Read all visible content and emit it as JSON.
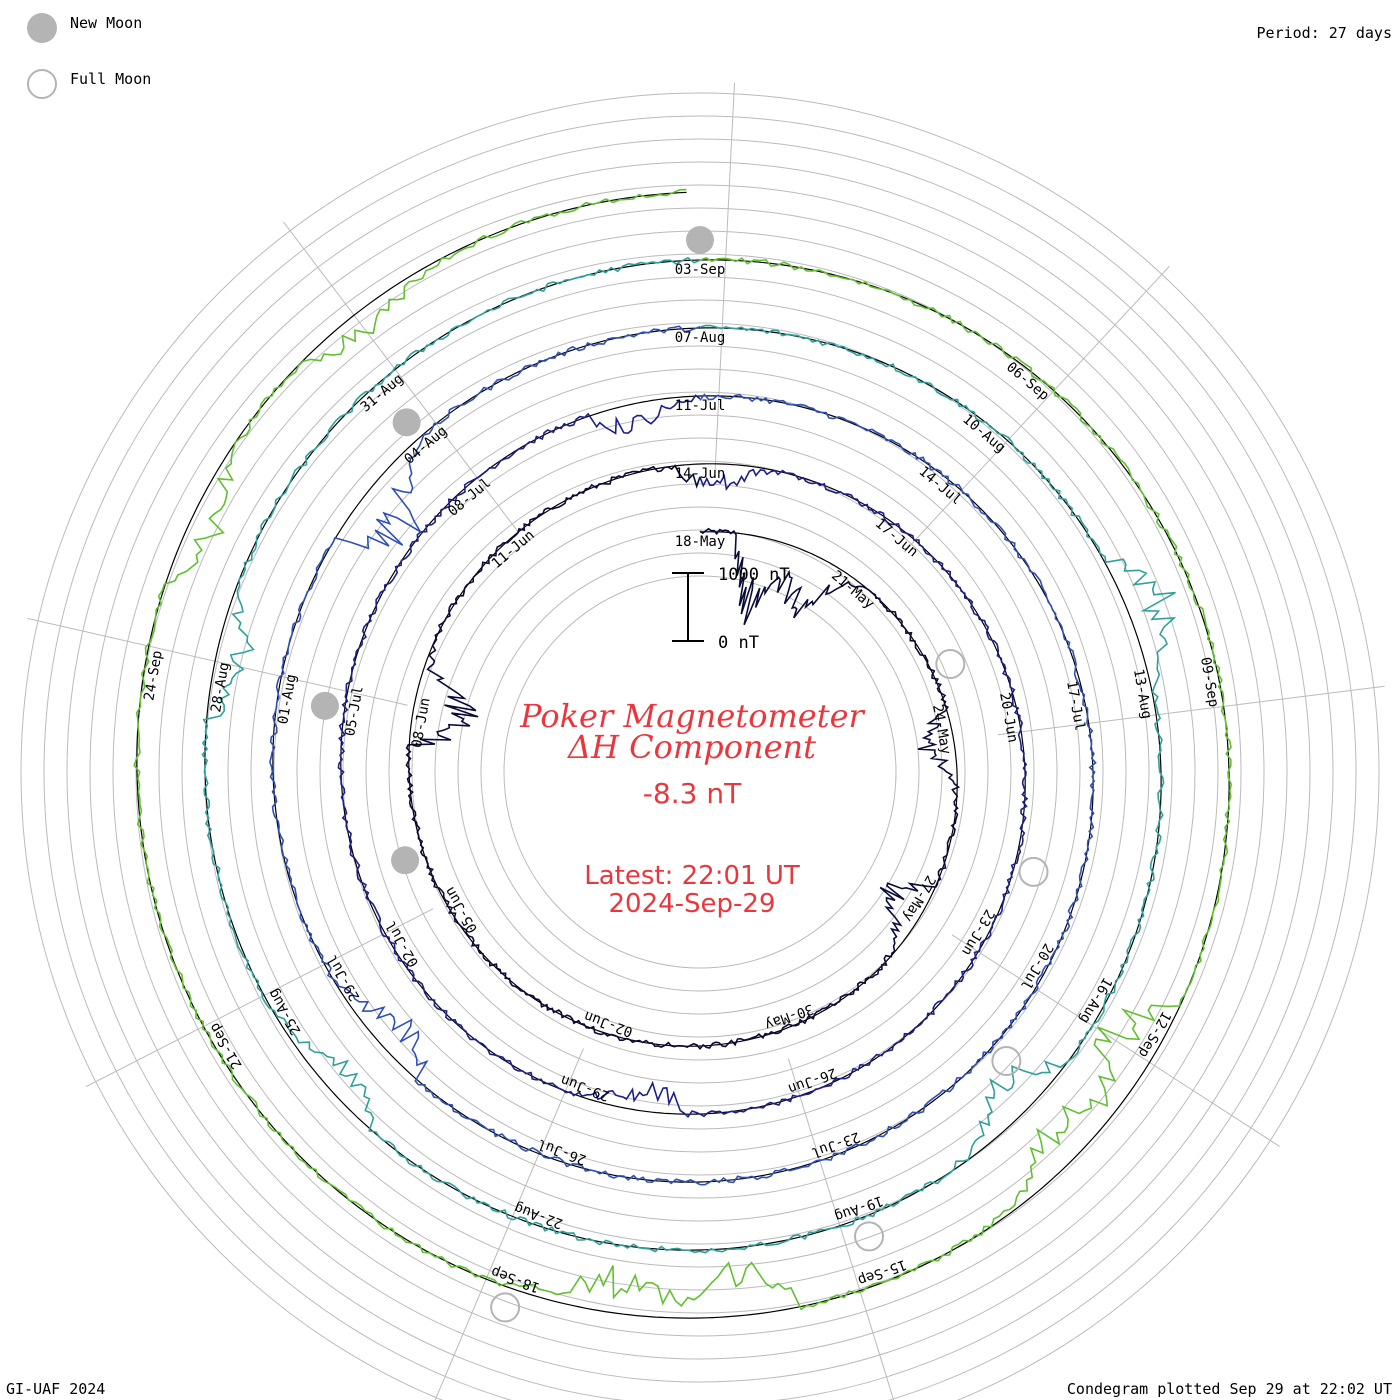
{
  "header": {
    "new_moon_label": "New Moon",
    "full_moon_label": "Full Moon",
    "period_label": "Period: 27 days"
  },
  "footer": {
    "credit": "GI-UAF 2024",
    "plotted": "Condegram plotted Sep 29 at 22:02 UT"
  },
  "center": {
    "title_line1": "Poker Magnetometer",
    "title_line2": "ΔH Component",
    "current_value": "-8.3 nT",
    "latest_time": "Latest: 22:01 UT",
    "latest_date": "2024-Sep-29",
    "scale_top_label": "1000 nT",
    "scale_bottom_label": "0 nT"
  },
  "colors": {
    "turns": [
      "#0b0b3a",
      "#1e1e8c",
      "#3050b8",
      "#30a09a",
      "#60c030",
      "#b0a010",
      "#c03010"
    ],
    "accent": "#e8383d",
    "moon_fill": "#b4b4b4",
    "grid": "#bbbbbb"
  },
  "chart_data": {
    "type": "condegram",
    "period_days": 27,
    "units": "nT",
    "scale_bar_nT": [
      0,
      1000
    ],
    "start_date": "2024-May-18",
    "end_date": "2024-Sep-29",
    "current_value_nT": -8.3,
    "date_labels": [
      {
        "turn": 0,
        "labels": [
          "18-May",
          "21-May",
          "24-May",
          "27-May",
          "30-May",
          "02-Jun",
          "05-Jun",
          "08-Jun",
          "11-Jun"
        ]
      },
      {
        "turn": 1,
        "labels": [
          "14-Jun",
          "17-Jun",
          "20-Jun",
          "23-Jun",
          "26-Jun",
          "29-Jun",
          "02-Jul",
          "05-Jul",
          "08-Jul"
        ]
      },
      {
        "turn": 2,
        "labels": [
          "11-Jul",
          "14-Jul",
          "17-Jul",
          "20-Jul",
          "23-Jul",
          "26-Jul",
          "29-Jul",
          "01-Aug",
          "04-Aug"
        ]
      },
      {
        "turn": 3,
        "labels": [
          "07-Aug",
          "10-Aug",
          "13-Aug",
          "16-Aug",
          "19-Aug",
          "22-Aug",
          "25-Aug",
          "28-Aug",
          "31-Aug"
        ]
      },
      {
        "turn": 4,
        "labels": [
          "03-Sep",
          "06-Sep",
          "09-Sep",
          "12-Sep",
          "15-Sep",
          "18-Sep",
          "21-Sep",
          "24-Sep"
        ]
      }
    ],
    "new_moon_dates": [
      "2024-Jun-06",
      "2024-Jul-05",
      "2024-Aug-04",
      "2024-Sep-03"
    ],
    "full_moon_dates": [
      "2024-May-23",
      "2024-Jun-22",
      "2024-Jul-21",
      "2024-Aug-19",
      "2024-Sep-18"
    ],
    "disturbances": [
      {
        "date": "2024-May-19",
        "dH_nT": -900
      },
      {
        "date": "2024-May-20",
        "dH_nT": -700
      },
      {
        "date": "2024-May-24",
        "dH_nT": -400
      },
      {
        "date": "2024-May-27",
        "dH_nT": -500
      },
      {
        "date": "2024-Jun-08",
        "dH_nT": -800
      },
      {
        "date": "2024-Jun-14",
        "dH_nT": -300
      },
      {
        "date": "2024-Jun-28",
        "dH_nT": -350
      },
      {
        "date": "2024-Jul-10",
        "dH_nT": -300
      },
      {
        "date": "2024-Jul-28",
        "dH_nT": -400
      },
      {
        "date": "2024-Aug-03",
        "dH_nT": -700
      },
      {
        "date": "2024-Aug-12",
        "dH_nT": 500
      },
      {
        "date": "2024-Aug-17",
        "dH_nT": -450
      },
      {
        "date": "2024-Aug-24",
        "dH_nT": -300
      },
      {
        "date": "2024-Aug-28",
        "dH_nT": -400
      },
      {
        "date": "2024-Sep-12",
        "dH_nT": -600
      },
      {
        "date": "2024-Sep-13",
        "dH_nT": -500
      },
      {
        "date": "2024-Sep-16",
        "dH_nT": -550
      },
      {
        "date": "2024-Sep-17",
        "dH_nT": -450
      },
      {
        "date": "2024-Sep-25",
        "dH_nT": -350
      },
      {
        "date": "2024-Sep-27",
        "dH_nT": -300
      }
    ]
  }
}
